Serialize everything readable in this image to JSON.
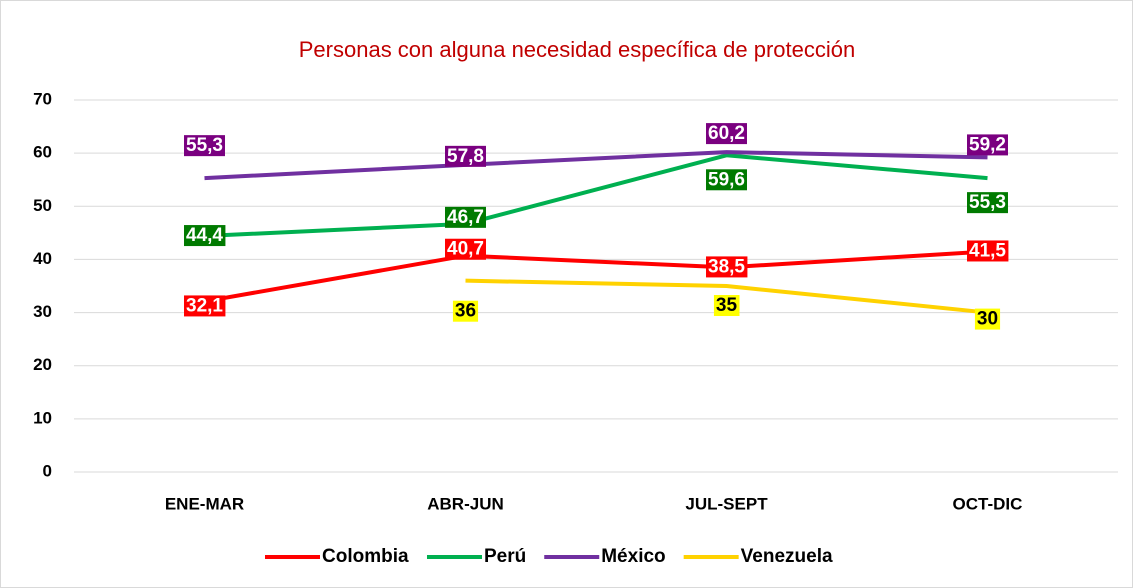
{
  "chart_data": {
    "type": "line",
    "title": "Personas con alguna necesidad específica de protección",
    "categories": [
      "ENE-MAR",
      "ABR-JUN",
      "JUL-SEPT",
      "OCT-DIC"
    ],
    "series": [
      {
        "name": "Colombia",
        "color": "#ff0000",
        "label_fill": "#ff0000",
        "label_text_color": "#ffffff",
        "values": [
          32.1,
          40.7,
          38.5,
          41.5
        ],
        "value_labels": [
          "32,1",
          "40,7",
          "38,5",
          "41,5"
        ]
      },
      {
        "name": "Perú",
        "color": "#00b050",
        "label_fill": "#007a00",
        "label_text_color": "#ffffff",
        "values": [
          44.4,
          46.7,
          59.6,
          55.3
        ],
        "value_labels": [
          "44,4",
          "46,7",
          "59,6",
          "55,3"
        ]
      },
      {
        "name": "México",
        "color": "#7030a0",
        "label_fill": "#7a0080",
        "label_text_color": "#ffffff",
        "values": [
          55.3,
          57.8,
          60.2,
          59.2
        ],
        "value_labels": [
          "55,3",
          "57,8",
          "60,2",
          "59,2"
        ]
      },
      {
        "name": "Venezuela",
        "color": "#ffd200",
        "label_fill": "#ffff00",
        "label_text_color": "#000000",
        "values": [
          null,
          36,
          35,
          30
        ],
        "value_labels": [
          null,
          "36",
          "35",
          "30"
        ]
      }
    ],
    "ylim": [
      0,
      70
    ],
    "yticks": [
      0,
      10,
      20,
      30,
      40,
      50,
      60,
      70
    ],
    "grid": true,
    "legend": "bottom"
  }
}
